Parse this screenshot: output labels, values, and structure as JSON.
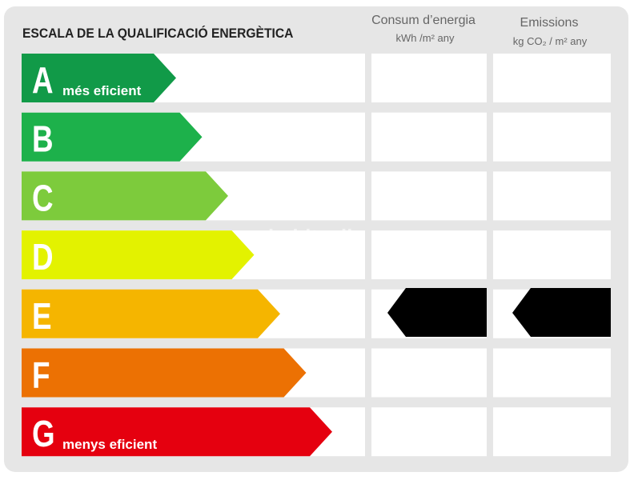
{
  "title": "ESCALA DE LA QUALIFICACIÓ ENERGÈTICA",
  "columns": [
    {
      "title": "Consum d’energia",
      "unit": "kWh /m² any"
    },
    {
      "title": "Emissions",
      "unit": "kg CO₂ / m² any"
    }
  ],
  "ratings": [
    {
      "letter": "A",
      "label": "més eficient",
      "color": "#119a48"
    },
    {
      "letter": "B",
      "color": "#1db14b"
    },
    {
      "letter": "C",
      "color": "#7dcb3c"
    },
    {
      "letter": "D",
      "color": "#e3f200"
    },
    {
      "letter": "E",
      "color": "#f5b500"
    },
    {
      "letter": "F",
      "color": "#ec7103"
    },
    {
      "letter": "G",
      "label": "menys eficient",
      "color": "#e5000f"
    }
  ],
  "watermark": "habitaclia"
}
